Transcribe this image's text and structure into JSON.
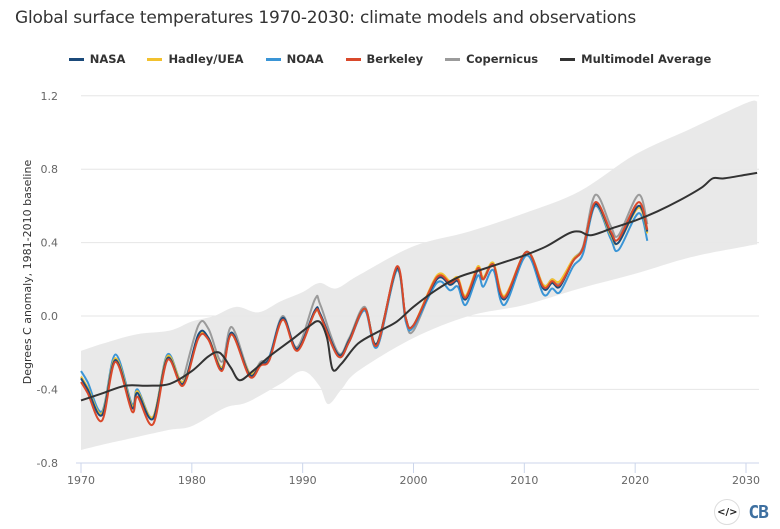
{
  "chart_data": {
    "type": "line",
    "title": "Global surface temperatures 1970-2030: climate models and observations",
    "ylabel": "Degrees C anomaly, 1981-2010 baseline",
    "xlabel": "",
    "xlim": [
      1970,
      2031
    ],
    "ylim": [
      -0.8,
      1.2
    ],
    "xticks": [
      "1970",
      "1980",
      "1990",
      "2000",
      "2010",
      "2020",
      "2030"
    ],
    "yticks": [
      "1.2",
      "0.8",
      "0.4",
      "0.0",
      "-0.4",
      "-0.8"
    ],
    "grid": true,
    "legend_position": "top",
    "obs_x": [
      1970.0,
      1970.6,
      1971.9,
      1973.1,
      1974.6,
      1975.1,
      1976.5,
      1977.8,
      1979.2,
      1980.6,
      1981.5,
      1982.7,
      1983.6,
      1985.2,
      1986.2,
      1987.0,
      1988.2,
      1989.5,
      1991.1,
      1991.6,
      1993.2,
      1994.2,
      1995.6,
      1996.7,
      1998.5,
      1999.3,
      2000.0,
      2002.1,
      2003.3,
      2004.0,
      2004.7,
      2005.8,
      2006.3,
      2007.2,
      2008.2,
      2010.2,
      2011.7,
      2012.5,
      2013.2,
      2014.4,
      2015.3,
      2016.4,
      2017.8,
      2018.5,
      2020.3,
      2021.1
    ],
    "series": [
      {
        "name": "Copernicus",
        "color": "#9b9b9b",
        "values": [
          null,
          null,
          null,
          null,
          null,
          null,
          null,
          null,
          -0.35,
          -0.05,
          -0.07,
          -0.25,
          -0.06,
          -0.31,
          -0.25,
          -0.22,
          0.0,
          -0.17,
          0.09,
          0.06,
          -0.2,
          -0.12,
          0.05,
          -0.17,
          0.25,
          -0.02,
          -0.08,
          0.2,
          0.17,
          0.19,
          0.1,
          0.26,
          0.2,
          0.28,
          0.1,
          0.35,
          0.17,
          0.2,
          0.18,
          0.31,
          0.38,
          0.66,
          0.49,
          0.44,
          0.66,
          0.5
        ]
      },
      {
        "name": "NOAA",
        "color": "#3a95d6",
        "values": [
          -0.3,
          -0.36,
          -0.52,
          -0.21,
          -0.48,
          -0.4,
          -0.55,
          -0.21,
          -0.36,
          -0.1,
          -0.12,
          -0.28,
          -0.1,
          -0.31,
          -0.26,
          -0.22,
          -0.01,
          -0.18,
          0.02,
          0.0,
          -0.22,
          -0.14,
          0.03,
          -0.17,
          0.25,
          -0.03,
          -0.06,
          0.18,
          0.14,
          0.16,
          0.06,
          0.22,
          0.16,
          0.25,
          0.06,
          0.33,
          0.12,
          0.15,
          0.13,
          0.27,
          0.34,
          0.6,
          0.42,
          0.36,
          0.56,
          0.41
        ]
      },
      {
        "name": "Hadley/UEA",
        "color": "#f2c12e",
        "values": [
          -0.33,
          -0.39,
          -0.53,
          -0.23,
          -0.49,
          -0.41,
          -0.55,
          -0.22,
          -0.36,
          -0.11,
          -0.12,
          -0.28,
          -0.1,
          -0.31,
          -0.26,
          -0.23,
          -0.02,
          -0.18,
          0.02,
          0.0,
          -0.21,
          -0.13,
          0.04,
          -0.15,
          0.26,
          -0.01,
          -0.05,
          0.22,
          0.19,
          0.21,
          0.11,
          0.27,
          0.21,
          0.29,
          0.11,
          0.35,
          0.17,
          0.2,
          0.19,
          0.31,
          0.37,
          0.61,
          0.44,
          0.4,
          0.59,
          0.45
        ]
      },
      {
        "name": "NASA",
        "color": "#1b4a7a",
        "values": [
          -0.34,
          -0.4,
          -0.54,
          -0.24,
          -0.5,
          -0.42,
          -0.56,
          -0.23,
          -0.37,
          -0.1,
          -0.12,
          -0.29,
          -0.09,
          -0.32,
          -0.26,
          -0.23,
          -0.01,
          -0.18,
          0.03,
          0.01,
          -0.21,
          -0.13,
          0.04,
          -0.15,
          0.26,
          -0.01,
          -0.05,
          0.2,
          0.17,
          0.19,
          0.09,
          0.25,
          0.2,
          0.28,
          0.09,
          0.35,
          0.15,
          0.18,
          0.16,
          0.3,
          0.37,
          0.61,
          0.45,
          0.4,
          0.6,
          0.46
        ]
      },
      {
        "name": "Berkeley",
        "color": "#d9492b",
        "values": [
          -0.36,
          -0.42,
          -0.57,
          -0.25,
          -0.52,
          -0.44,
          -0.59,
          -0.24,
          -0.38,
          -0.12,
          -0.13,
          -0.3,
          -0.1,
          -0.33,
          -0.27,
          -0.24,
          -0.02,
          -0.19,
          0.02,
          0.0,
          -0.22,
          -0.14,
          0.04,
          -0.16,
          0.27,
          -0.01,
          -0.05,
          0.21,
          0.18,
          0.2,
          0.1,
          0.26,
          0.2,
          0.28,
          0.1,
          0.35,
          0.16,
          0.19,
          0.17,
          0.3,
          0.37,
          0.62,
          0.46,
          0.42,
          0.62,
          0.47
        ]
      }
    ],
    "multimodel": {
      "name": "Multimodel Average",
      "color": "#333333",
      "points": [
        [
          1970,
          -0.46
        ],
        [
          1972,
          -0.42
        ],
        [
          1974,
          -0.38
        ],
        [
          1976,
          -0.38
        ],
        [
          1978,
          -0.37
        ],
        [
          1980,
          -0.3
        ],
        [
          1981.5,
          -0.22
        ],
        [
          1982.5,
          -0.2
        ],
        [
          1983.5,
          -0.28
        ],
        [
          1984.3,
          -0.35
        ],
        [
          1985.5,
          -0.3
        ],
        [
          1987,
          -0.22
        ],
        [
          1989,
          -0.13
        ],
        [
          1990.5,
          -0.06
        ],
        [
          1991.5,
          -0.03
        ],
        [
          1992.2,
          -0.12
        ],
        [
          1992.7,
          -0.29
        ],
        [
          1993.5,
          -0.26
        ],
        [
          1995,
          -0.15
        ],
        [
          1997,
          -0.08
        ],
        [
          1998.5,
          -0.03
        ],
        [
          2000,
          0.05
        ],
        [
          2002,
          0.14
        ],
        [
          2004,
          0.21
        ],
        [
          2006,
          0.25
        ],
        [
          2008,
          0.29
        ],
        [
          2010,
          0.33
        ],
        [
          2012,
          0.38
        ],
        [
          2014,
          0.45
        ],
        [
          2015,
          0.46
        ],
        [
          2016,
          0.44
        ],
        [
          2018,
          0.48
        ],
        [
          2020,
          0.52
        ],
        [
          2022,
          0.57
        ],
        [
          2024,
          0.63
        ],
        [
          2026,
          0.7
        ],
        [
          2027,
          0.75
        ],
        [
          2028,
          0.75
        ],
        [
          2030,
          0.77
        ],
        [
          2031,
          0.78
        ]
      ]
    },
    "model_range": {
      "color": "#e8e8e8",
      "upper": [
        [
          1970,
          -0.19
        ],
        [
          1972,
          -0.15
        ],
        [
          1975,
          -0.1
        ],
        [
          1978,
          -0.08
        ],
        [
          1980,
          -0.03
        ],
        [
          1982,
          0.0
        ],
        [
          1984,
          0.05
        ],
        [
          1986,
          0.02
        ],
        [
          1988,
          0.08
        ],
        [
          1990,
          0.13
        ],
        [
          1991.5,
          0.18
        ],
        [
          1993,
          0.15
        ],
        [
          1995,
          0.22
        ],
        [
          2000,
          0.38
        ],
        [
          2005,
          0.46
        ],
        [
          2010,
          0.56
        ],
        [
          2015,
          0.68
        ],
        [
          2020,
          0.88
        ],
        [
          2025,
          1.02
        ],
        [
          2030,
          1.16
        ],
        [
          2031,
          1.17
        ]
      ],
      "lower": [
        [
          1970,
          -0.73
        ],
        [
          1972,
          -0.7
        ],
        [
          1975,
          -0.66
        ],
        [
          1978,
          -0.62
        ],
        [
          1980,
          -0.6
        ],
        [
          1983,
          -0.5
        ],
        [
          1985,
          -0.47
        ],
        [
          1988,
          -0.37
        ],
        [
          1990,
          -0.3
        ],
        [
          1991.5,
          -0.38
        ],
        [
          1992.3,
          -0.48
        ],
        [
          1993.5,
          -0.4
        ],
        [
          1995,
          -0.3
        ],
        [
          2000,
          -0.12
        ],
        [
          2005,
          0.0
        ],
        [
          2010,
          0.06
        ],
        [
          2015,
          0.15
        ],
        [
          2020,
          0.23
        ],
        [
          2025,
          0.32
        ],
        [
          2030,
          0.38
        ],
        [
          2031,
          0.39
        ]
      ]
    }
  },
  "legend": [
    {
      "label": "NASA",
      "color": "#1b4a7a"
    },
    {
      "label": "Hadley/UEA",
      "color": "#f2c12e"
    },
    {
      "label": "NOAA",
      "color": "#3a95d6"
    },
    {
      "label": "Berkeley",
      "color": "#d9492b"
    },
    {
      "label": "Copernicus",
      "color": "#9b9b9b"
    },
    {
      "label": "Multimodel Average",
      "color": "#333333"
    }
  ],
  "footer": {
    "embed_icon": "code-embed-icon",
    "embed_glyph": "</>",
    "logo": "CB"
  }
}
